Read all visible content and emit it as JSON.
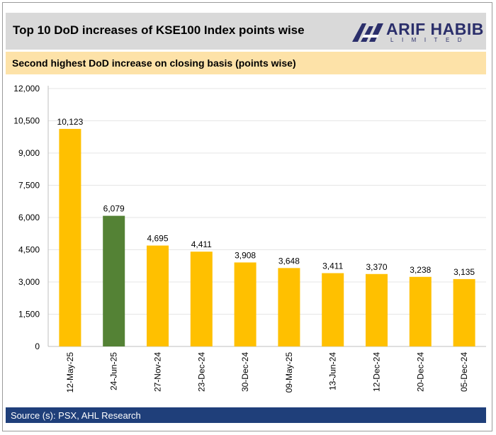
{
  "title": "Top 10 DoD increases of KSE100 Index points wise",
  "logo": {
    "name": "ARIF HABIB",
    "sub": "LIMITED"
  },
  "subtitle": "Second highest  DoD increase on closing basis (points wise)",
  "source": "Source (s): PSX, AHL Research",
  "colors": {
    "default_bar": "#ffc000",
    "highlight_bar": "#548235",
    "title_bg": "#d9d9d9",
    "subtitle_bg": "#fde2a8",
    "footer_bg": "#1f3f7a",
    "logo": "#2b2f6b"
  },
  "chart_data": {
    "type": "bar",
    "categories": [
      "12-May-25",
      "24-Jun-25",
      "27-Nov-24",
      "23-Dec-24",
      "30-Dec-24",
      "09-May-25",
      "13-Jun-24",
      "12-Dec-24",
      "20-Dec-24",
      "05-Dec-24"
    ],
    "values": [
      10123,
      6079,
      4695,
      4411,
      3908,
      3648,
      3411,
      3370,
      3238,
      3135
    ],
    "data_labels": [
      "10,123",
      "6,079",
      "4,695",
      "4,411",
      "3,908",
      "3,648",
      "3,411",
      "3,370",
      "3,238",
      "3,135"
    ],
    "highlight_index": 1,
    "ylim": [
      0,
      12000
    ],
    "yticks": [
      0,
      1500,
      3000,
      4500,
      6000,
      7500,
      9000,
      10500,
      12000
    ],
    "ytick_labels": [
      "0",
      "1,500",
      "3,000",
      "4,500",
      "6,000",
      "7,500",
      "9,000",
      "10,500",
      "12,000"
    ],
    "xlabel": "",
    "ylabel": "",
    "grid": true
  }
}
